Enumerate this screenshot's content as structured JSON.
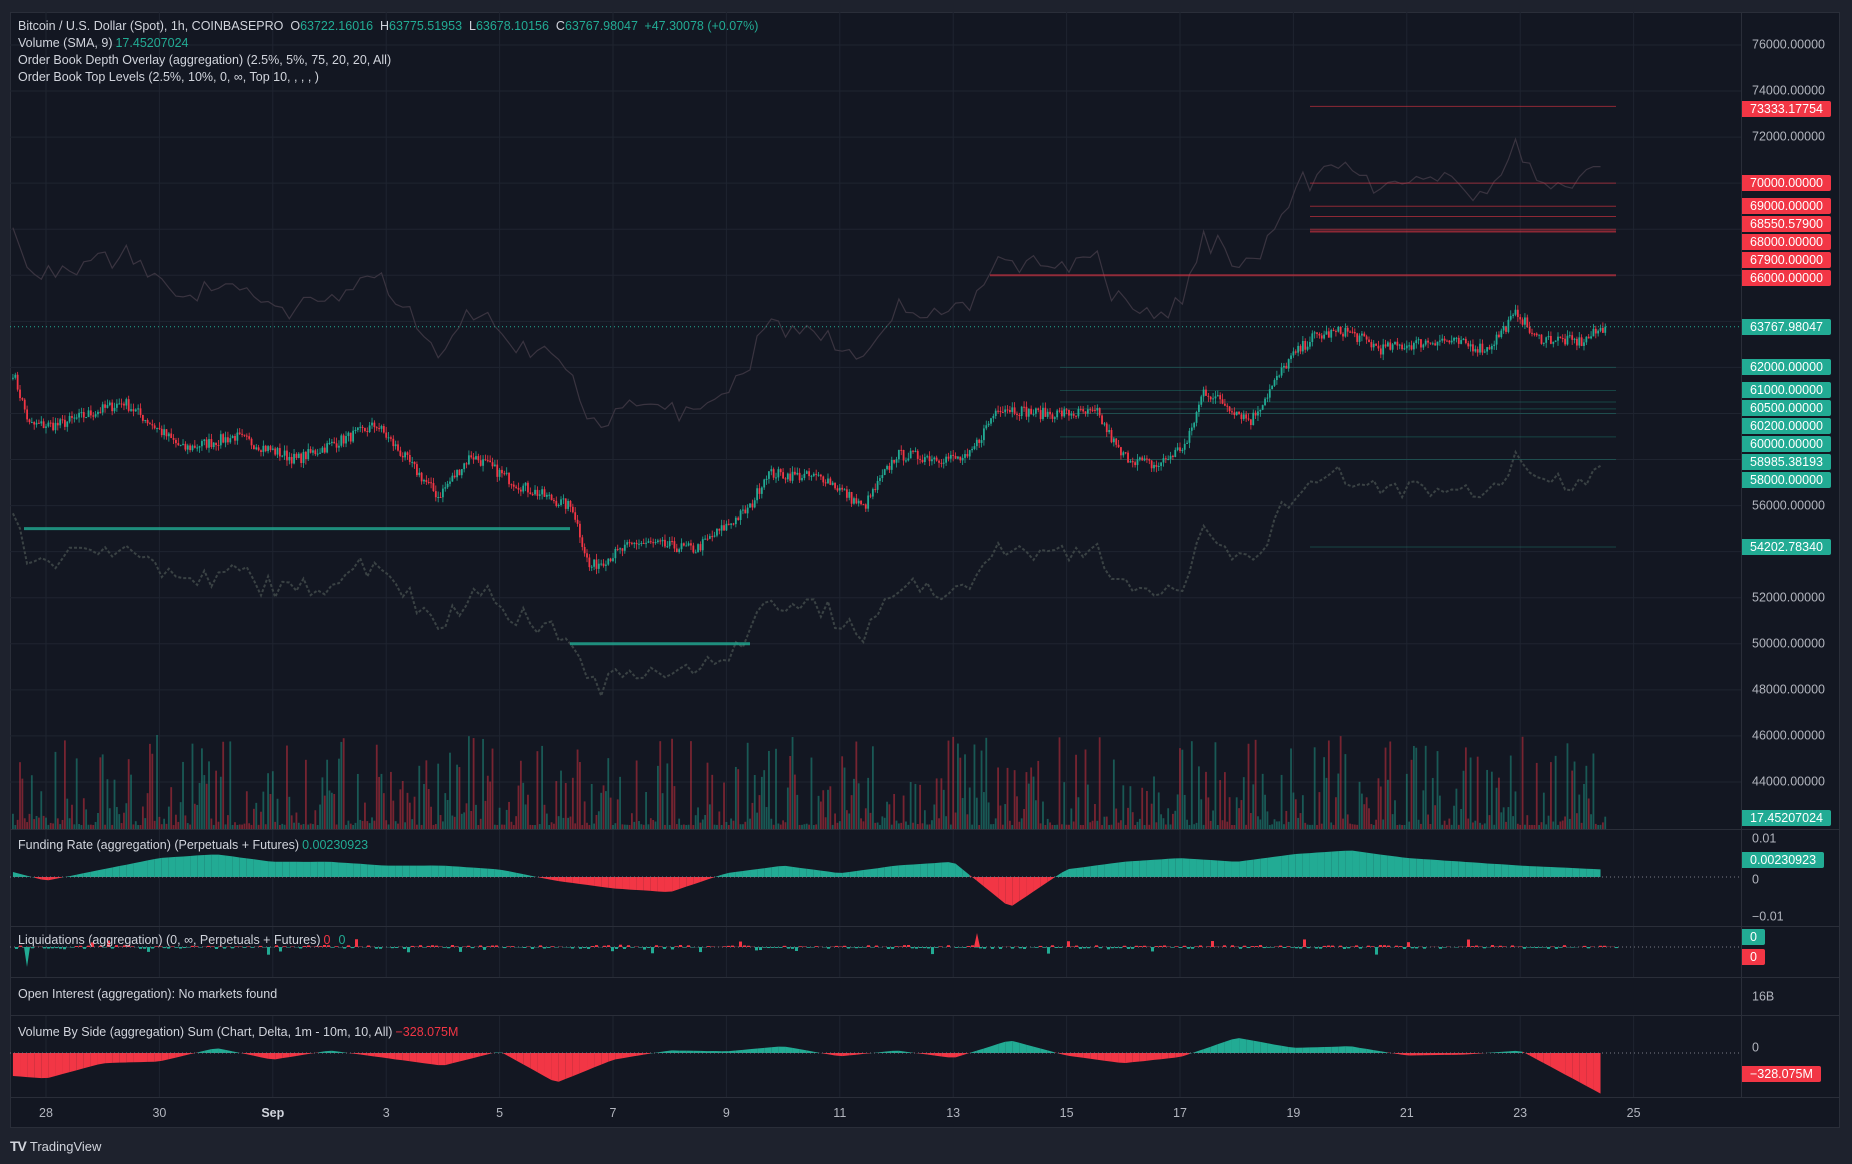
{
  "legend": {
    "symbol": "Bitcoin / U.S. Dollar (Spot), 1h, COINBASEPRO",
    "open_label": "O",
    "open": "63722.16016",
    "high_label": "H",
    "high": "63775.51953",
    "low_label": "L",
    "low": "63678.10156",
    "close_label": "C",
    "close": "63767.98047",
    "change": "+47.30078 (+0.07%)",
    "volume": "Volume (SMA, 9)",
    "volume_value": "17.45207024",
    "depth": "Order Book Depth Overlay (aggregation) (2.5%, 5%, 75, 20, 20, All)",
    "top_levels": "Order Book Top Levels (2.5%, 10%, 0, ∞, Top 10, , , , )"
  },
  "panes": {
    "funding": {
      "title": "Funding Rate (aggregation) (Perpetuals + Futures)",
      "value": "0.00230923",
      "ticks": [
        "0.01",
        "0",
        "−0.01"
      ],
      "label": "0.00230923"
    },
    "liquidations": {
      "title": "Liquidations (aggregation) (0, ∞, Perpetuals + Futures)",
      "value_sell": "0",
      "value_buy": "0",
      "label_buy": "0",
      "label_sell": "0"
    },
    "open_interest": {
      "title": "Open Interest (aggregation): No markets found",
      "tick": "16B"
    },
    "volume_by_side": {
      "title": "Volume By Side (aggregation) Sum (Chart, Delta, 1m - 10m, 10, All)",
      "value": "−328.075M",
      "tick": "0",
      "label": "−328.075M"
    }
  },
  "price_axis": {
    "ticks": [
      "76000.00000",
      "74000.00000",
      "72000.00000",
      "56000.00000",
      "52000.00000",
      "50000.00000",
      "48000.00000",
      "46000.00000",
      "44000.00000"
    ],
    "tick_values": [
      76000,
      74000,
      72000,
      56000,
      52000,
      50000,
      48000,
      46000,
      44000
    ],
    "ask_labels": [
      "73333.17754",
      "70000.00000",
      "69000.00000",
      "68550.57900",
      "68000.00000",
      "67900.00000",
      "66000.00000"
    ],
    "ask_values": [
      73333.17754,
      70000,
      69000,
      68550.579,
      68000,
      67900,
      66000
    ],
    "bid_labels": [
      "62000.00000",
      "61000.00000",
      "60500.00000",
      "60200.00000",
      "60000.00000",
      "58985.38193",
      "58000.00000",
      "54202.78340"
    ],
    "bid_values": [
      62000,
      61000,
      60500,
      60200,
      60000,
      58985.38193,
      58000,
      54202.7834
    ],
    "last_price_label": "63767.98047",
    "last_price": 63767.98047,
    "volume_label": "17.45207024"
  },
  "date_axis": [
    "28",
    "30",
    "Sep",
    "3",
    "5",
    "7",
    "9",
    "11",
    "13",
    "15",
    "17",
    "19",
    "21",
    "23",
    "25"
  ],
  "footer": {
    "brand": "TradingView"
  },
  "colors": {
    "up": "#22ab94",
    "down": "#f23645",
    "background": "#131722",
    "grid": "#1f2430"
  },
  "chart_data": [
    {
      "type": "candlestick",
      "title": "Bitcoin / U.S. Dollar (Spot), 1h, COINBASEPRO",
      "ylim": [
        43000,
        77000
      ],
      "x": [
        "2024-08-27T10:00",
        "2024-08-27T17:00",
        "2024-08-28T05:00",
        "2024-08-29T09:00",
        "2024-08-30T10:00",
        "2024-08-31T08:00",
        "2024-09-01T10:00",
        "2024-09-02T20:00",
        "2024-09-03T22:00",
        "2024-09-04T12:00",
        "2024-09-05T08:00",
        "2024-09-06T07:00",
        "2024-09-06T14:00",
        "2024-09-07T10:00",
        "2024-09-08T11:00",
        "2024-09-09T10:00",
        "2024-09-09T17:00",
        "2024-09-10T18:00",
        "2024-09-11T10:00",
        "2024-09-12T00:00",
        "2024-09-13T06:00",
        "2024-09-13T19:00",
        "2024-09-14T12:00",
        "2024-09-15T13:00",
        "2024-09-15T23:00",
        "2024-09-16T14:00",
        "2024-09-17T03:00",
        "2024-09-17T10:00",
        "2024-09-18T06:00",
        "2024-09-18T22:00",
        "2024-09-19T08:00",
        "2024-09-19T22:00",
        "2024-09-20T13:00",
        "2024-09-21T14:00",
        "2024-09-22T10:00",
        "2024-09-22T23:00",
        "2024-09-23T06:00",
        "2024-09-24T02:00",
        "2024-09-24T12:00"
      ],
      "close": [
        61800,
        59500,
        59500,
        60500,
        58460,
        59000,
        58000,
        59500,
        56400,
        58200,
        56900,
        55900,
        53300,
        54400,
        54100,
        55900,
        57400,
        57200,
        55900,
        58200,
        58000,
        60300,
        60000,
        60000,
        58200,
        57700,
        58700,
        61000,
        59700,
        62300,
        63300,
        63600,
        62800,
        63200,
        62800,
        64400,
        63300,
        63100,
        63767.98
      ]
    },
    {
      "type": "area",
      "title": "Funding Rate (aggregation) (Perpetuals + Futures)",
      "x_start": "2024-08-27",
      "x_step": "1 day",
      "values": [
        0.003,
        -0.001,
        0.002,
        0.005,
        0.006,
        0.004,
        0.004,
        0.003,
        0.003,
        0.002,
        -0.001,
        -0.003,
        -0.004,
        0.001,
        0.003,
        0.001,
        0.003,
        0.004,
        -0.008,
        0.002,
        0.004,
        0.005,
        0.004,
        0.006,
        0.007,
        0.005,
        0.004,
        0.003,
        0.0023
      ],
      "ylim": [
        -0.012,
        0.012
      ]
    },
    {
      "type": "area",
      "title": "Volume By Side (aggregation) Sum (Chart, Delta, 1m - 10m, 10, All)",
      "x_start": "2024-08-27",
      "x_step": "1 day",
      "values": [
        -250,
        -300,
        -120,
        -100,
        60,
        -80,
        30,
        -60,
        -150,
        20,
        -350,
        -80,
        30,
        20,
        80,
        -40,
        30,
        -60,
        150,
        -30,
        -120,
        -50,
        180,
        60,
        80,
        -30,
        -20,
        30,
        -328.075
      ],
      "unit": "M"
    }
  ]
}
